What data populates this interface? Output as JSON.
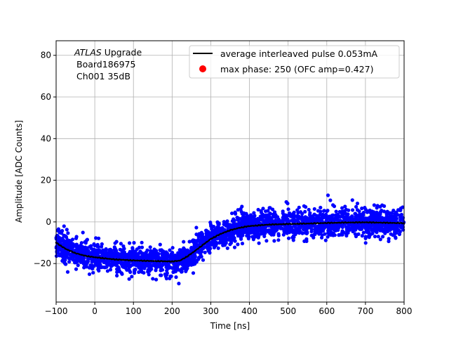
{
  "chart_data": {
    "type": "scatter",
    "xlabel": "Time [ns]",
    "ylabel": "Amplitude [ADC Counts]",
    "xlim": [
      -100,
      800
    ],
    "ylim": [
      -38.5,
      87
    ],
    "grid": true,
    "xticks": [
      -100,
      0,
      100,
      200,
      300,
      400,
      500,
      600,
      700,
      800
    ],
    "yticks": [
      -20,
      0,
      20,
      40,
      60,
      80
    ],
    "annotation": {
      "italic": "ATLAS",
      "rest": " Upgrade",
      "line2": "Board186975",
      "line3": "Ch001 35dB"
    },
    "legend": {
      "placement": "top-right",
      "entries": [
        {
          "label": "average interleaved pulse 0.053mA",
          "marker": "line",
          "color": "#000000"
        },
        {
          "label": "max phase: 250 (OFC amp=0.427)",
          "marker": "dot",
          "color": "#ff0000"
        }
      ]
    },
    "series": [
      {
        "name": "average interleaved pulse",
        "type": "line",
        "color": "#000000",
        "x": [
          -100,
          -75,
          -50,
          -25,
          0,
          50,
          100,
          150,
          200,
          220,
          240,
          260,
          280,
          300,
          325,
          350,
          375,
          400,
          450,
          500,
          550,
          600,
          650,
          700,
          750,
          800
        ],
        "y": [
          -10,
          -13,
          -15,
          -16.3,
          -17,
          -18,
          -18.5,
          -18.8,
          -19,
          -18.6,
          -16.5,
          -13.8,
          -11,
          -8.2,
          -5.8,
          -4,
          -2.8,
          -2,
          -1.3,
          -1,
          -0.8,
          -0.5,
          -0.3,
          -0.2,
          -0.4,
          -0.6
        ]
      },
      {
        "name": "samples",
        "type": "scatter",
        "color": "#0000ff",
        "noise_sigma": 3.2,
        "count": 2600
      }
    ]
  }
}
